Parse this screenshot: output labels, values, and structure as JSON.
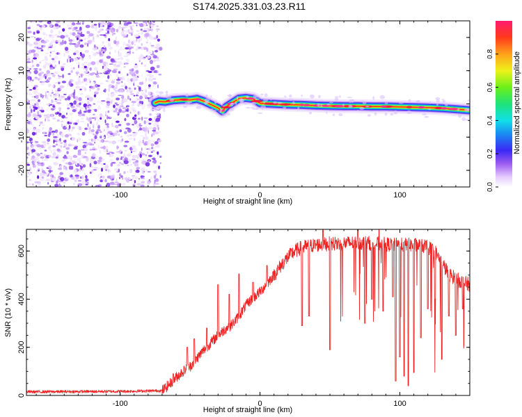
{
  "title": "S174.2025.331.03.23.R11",
  "chart_data": [
    {
      "type": "heatmap",
      "name": "spectrogram",
      "xlabel": "Height of straight line (km)",
      "ylabel": "Frequency (Hz)",
      "xlim": [
        -167,
        150
      ],
      "ylim": [
        -25,
        25
      ],
      "xticks": [
        -100,
        0,
        100
      ],
      "yticks": [
        -20,
        -10,
        0,
        10,
        20
      ],
      "noise_region_x": [
        -167,
        -75
      ],
      "signal_start_x": -75,
      "ridge": {
        "x": [
          -75,
          -72,
          -68,
          -62,
          -55,
          -50,
          -45,
          -40,
          -35,
          -30,
          -27,
          -24,
          -20,
          -15,
          -10,
          -5,
          0,
          5,
          10,
          20,
          30,
          40,
          50,
          60,
          70,
          80,
          90,
          100,
          110,
          120,
          130,
          140,
          150
        ],
        "freq_hz": [
          0.3,
          0.8,
          0.6,
          1.1,
          1.3,
          1.2,
          1.5,
          0.8,
          -0.2,
          -1.2,
          -2.2,
          -0.8,
          0.3,
          1.6,
          1.8,
          1.5,
          0.2,
          0.1,
          0.0,
          -0.2,
          -0.3,
          -0.5,
          -0.6,
          -0.7,
          -0.7,
          -0.8,
          -0.8,
          -0.9,
          -1.0,
          -1.1,
          -1.3,
          -1.6,
          -1.9
        ]
      },
      "colorbar": {
        "label": "Normalized spectral amplitude",
        "range": [
          0,
          1
        ],
        "ticks": [
          0.0,
          0.2,
          0.4,
          0.6,
          0.8
        ],
        "tick_labels": [
          "0.0",
          "0.2",
          "0.4",
          "0.6",
          "0.8"
        ]
      }
    },
    {
      "type": "line",
      "name": "snr",
      "xlabel": "Height of straight line (km)",
      "ylabel": "SNR (10 * v/v)",
      "xlim": [
        -167,
        150
      ],
      "ylim": [
        0,
        690
      ],
      "xticks": [
        -100,
        0,
        100
      ],
      "yticks": [
        0,
        200,
        400,
        600
      ],
      "color": "#ee2222",
      "envelope": {
        "x": [
          -167,
          -100,
          -70,
          -65,
          -60,
          -55,
          -50,
          -45,
          -40,
          -35,
          -30,
          -25,
          -20,
          -15,
          -10,
          -5,
          0,
          5,
          10,
          15,
          20,
          25,
          30,
          40,
          50,
          60,
          70,
          80,
          90,
          100,
          110,
          115,
          120,
          125,
          130,
          135,
          140,
          145,
          150
        ],
        "median": [
          15,
          17,
          20,
          45,
          75,
          100,
          120,
          155,
          190,
          220,
          250,
          275,
          295,
          330,
          375,
          405,
          430,
          465,
          500,
          540,
          575,
          600,
          615,
          625,
          630,
          632,
          635,
          632,
          628,
          625,
          625,
          623,
          615,
          600,
          550,
          505,
          485,
          470,
          460
        ]
      },
      "spikes": [
        {
          "x": -62,
          "y": 90
        },
        {
          "x": -52,
          "y": 200
        },
        {
          "x": -47,
          "y": 235
        },
        {
          "x": -38,
          "y": 280
        },
        {
          "x": -30,
          "y": 460
        },
        {
          "x": -22,
          "y": 420
        },
        {
          "x": -15,
          "y": 505
        },
        {
          "x": -5,
          "y": 470
        },
        {
          "x": 5,
          "y": 540
        },
        {
          "x": 45,
          "y": 690
        },
        {
          "x": 70,
          "y": 690
        },
        {
          "x": 85,
          "y": 690
        },
        {
          "x": 95,
          "y": 690
        },
        {
          "x": 100,
          "y": 690
        },
        {
          "x": 120,
          "y": 680
        }
      ],
      "dips": [
        {
          "x": 30,
          "y": 290
        },
        {
          "x": 35,
          "y": 330
        },
        {
          "x": 50,
          "y": 190
        },
        {
          "x": 75,
          "y": 300
        },
        {
          "x": 80,
          "y": 400
        },
        {
          "x": 88,
          "y": 350
        },
        {
          "x": 95,
          "y": 410
        },
        {
          "x": 97,
          "y": 60
        },
        {
          "x": 100,
          "y": 160
        },
        {
          "x": 103,
          "y": 80
        },
        {
          "x": 106,
          "y": 40
        },
        {
          "x": 110,
          "y": 95
        },
        {
          "x": 115,
          "y": 240
        },
        {
          "x": 120,
          "y": 360
        },
        {
          "x": 125,
          "y": 400
        },
        {
          "x": 130,
          "y": 150
        },
        {
          "x": 135,
          "y": 330
        },
        {
          "x": 140,
          "y": 250
        },
        {
          "x": 145,
          "y": 360
        }
      ]
    }
  ]
}
